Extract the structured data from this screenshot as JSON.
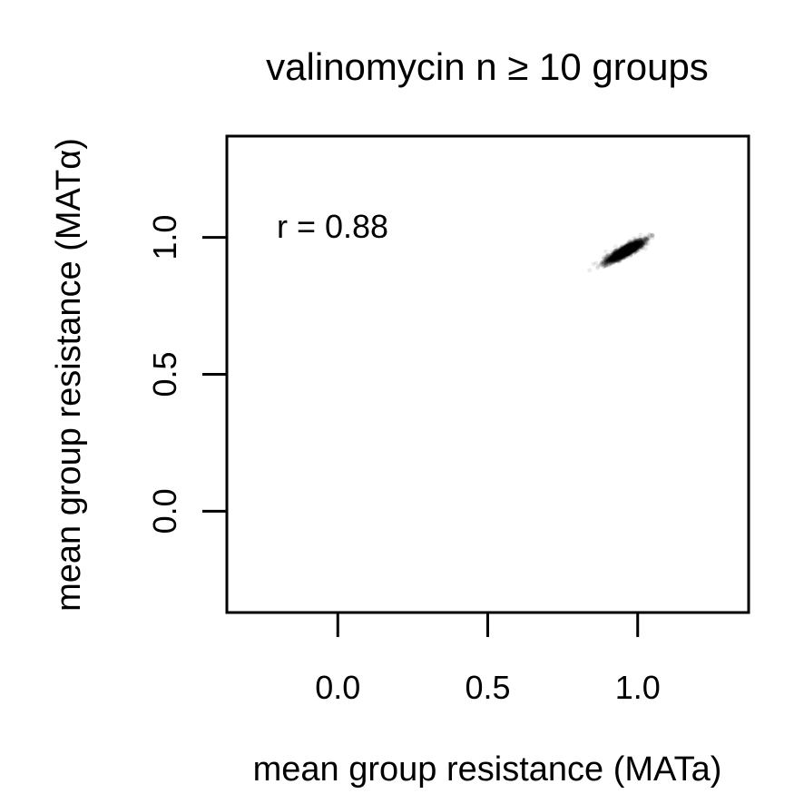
{
  "chart_data": {
    "type": "scatter",
    "title": "valinomycin n ≥ 10 groups",
    "xlabel": "mean group resistance (MATa)",
    "ylabel": "mean group resistance (MATα)",
    "xlim": [
      -0.37,
      1.37
    ],
    "ylim": [
      -0.37,
      1.37
    ],
    "xticks": [
      0.0,
      0.5,
      1.0
    ],
    "yticks": [
      0.0,
      0.5,
      1.0
    ],
    "xtick_labels": [
      "0.0",
      "0.5",
      "1.0"
    ],
    "ytick_labels": [
      "0.0",
      "0.5",
      "1.0"
    ],
    "grid": false,
    "annotation": "r = 0.88",
    "correlation": 0.88,
    "point_color": "#000000",
    "cluster": {
      "center": [
        0.96,
        0.95
      ],
      "x_range": [
        0.82,
        1.05
      ],
      "y_range": [
        0.88,
        1.02
      ]
    }
  }
}
